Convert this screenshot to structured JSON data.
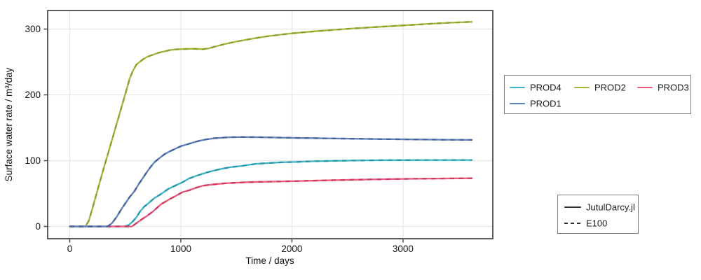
{
  "chart_data": {
    "type": "line",
    "title": "",
    "xlabel": "Time / days",
    "ylabel": "Surface water rate / m³/day",
    "xlim": [
      -200,
      3810
    ],
    "ylim": [
      -19,
      328
    ],
    "x_ticks": [
      0,
      1000,
      2000,
      3000
    ],
    "y_ticks": [
      0,
      100,
      200,
      300
    ],
    "grid": true,
    "variants": [
      {
        "name": "JutulDarcy.jl",
        "style": "solid"
      },
      {
        "name": "E100",
        "style": "dashed"
      }
    ],
    "series": [
      {
        "name": "PROD2",
        "color": "#a3b73c",
        "dash_color": "#8a9e28",
        "x": [
          0,
          100,
          140,
          170,
          200,
          250,
          300,
          350,
          400,
          450,
          500,
          540,
          570,
          600,
          630,
          660,
          700,
          750,
          800,
          850,
          900,
          950,
          1000,
          1100,
          1200,
          1250,
          1300,
          1400,
          1500,
          1600,
          1700,
          1800,
          1900,
          2000,
          2200,
          2400,
          2600,
          2800,
          3000,
          3200,
          3400,
          3620
        ],
        "y": [
          0,
          0,
          0,
          8,
          25,
          55,
          85,
          114,
          143,
          172,
          201,
          225,
          237,
          246,
          250,
          254,
          258,
          261,
          264,
          266,
          268,
          269,
          269.5,
          270,
          269.5,
          270.5,
          273,
          277.5,
          281,
          284,
          287,
          289.5,
          291.5,
          293.5,
          296.5,
          299,
          301.5,
          303.5,
          305.5,
          307.5,
          309.5,
          311
        ]
      },
      {
        "name": "PROD4",
        "color": "#3db5c5",
        "dash_color": "#2496a8",
        "x": [
          0,
          460,
          500,
          530,
          570,
          600,
          634,
          670,
          700,
          761,
          820,
          887,
          950,
          1013,
          1076,
          1140,
          1234,
          1300,
          1380,
          1445,
          1550,
          1666,
          1800,
          1900,
          2023,
          2200,
          2400,
          2600,
          2800,
          3000,
          3200,
          3400,
          3620
        ],
        "y": [
          0,
          0,
          0,
          2,
          8,
          14,
          23,
          30,
          34,
          43,
          49,
          57,
          62,
          67,
          73,
          77,
          82,
          85,
          88,
          90,
          92,
          95,
          96.5,
          97.5,
          98,
          99,
          99.8,
          100.3,
          100.6,
          100.8,
          101,
          101,
          101
        ]
      },
      {
        "name": "PROD3",
        "color": "#e8597b",
        "dash_color": "#d13560",
        "x": [
          0,
          520,
          560,
          600,
          650,
          700,
          750,
          824,
          900,
          950,
          1013,
          1076,
          1140,
          1202,
          1300,
          1400,
          1500,
          1600,
          1700,
          1800,
          1900,
          2100,
          2300,
          2500,
          2700,
          2900,
          3100,
          3300,
          3620
        ],
        "y": [
          0,
          0,
          0,
          5,
          11,
          16.5,
          23,
          34,
          41.5,
          46,
          52,
          55,
          59,
          62,
          64,
          65.5,
          66.5,
          67.2,
          67.8,
          68.1,
          68.4,
          69.2,
          70,
          70.7,
          71.4,
          72,
          72.4,
          72.8,
          73.2
        ]
      },
      {
        "name": "PROD1",
        "color": "#5e81b8",
        "dash_color": "#41629f",
        "x": [
          0,
          300,
          340,
          380,
          420,
          460,
          500,
          540,
          580,
          620,
          660,
          700,
          730,
          760,
          800,
          856,
          900,
          950,
          1000,
          1080,
          1150,
          1220,
          1300,
          1380,
          1450,
          1550,
          1700,
          1900,
          2100,
          2300,
          2500,
          2700,
          2900,
          3100,
          3300,
          3620
        ],
        "y": [
          0,
          0,
          0,
          5,
          14,
          25,
          35,
          45,
          53,
          64,
          74,
          84,
          91,
          97,
          103,
          110,
          114,
          118,
          122,
          126,
          129.5,
          132,
          134,
          135,
          135.6,
          135.8,
          135.6,
          135,
          134.4,
          133.9,
          133.4,
          133,
          132.6,
          132.2,
          131.9,
          131.5
        ]
      }
    ],
    "legend_position": "right-outside"
  },
  "legend_wells": {
    "items": [
      {
        "label": "PROD4",
        "color": "#3db5c5"
      },
      {
        "label": "PROD2",
        "color": "#a3b73c"
      },
      {
        "label": "PROD3",
        "color": "#e8597b"
      },
      {
        "label": "PROD1",
        "color": "#5e81b8"
      }
    ]
  },
  "legend_styles": {
    "items": [
      {
        "label": "JutulDarcy.jl",
        "style": "solid"
      },
      {
        "label": "E100",
        "style": "dashed"
      }
    ]
  },
  "axis_ticks": {
    "x_labels": [
      "0",
      "1000",
      "2000",
      "3000"
    ],
    "y_labels": [
      "0",
      "100",
      "200",
      "300"
    ]
  },
  "colors": {
    "spine": "#4c4c4c",
    "grid": "#e7e7e7",
    "text": "#111111"
  }
}
